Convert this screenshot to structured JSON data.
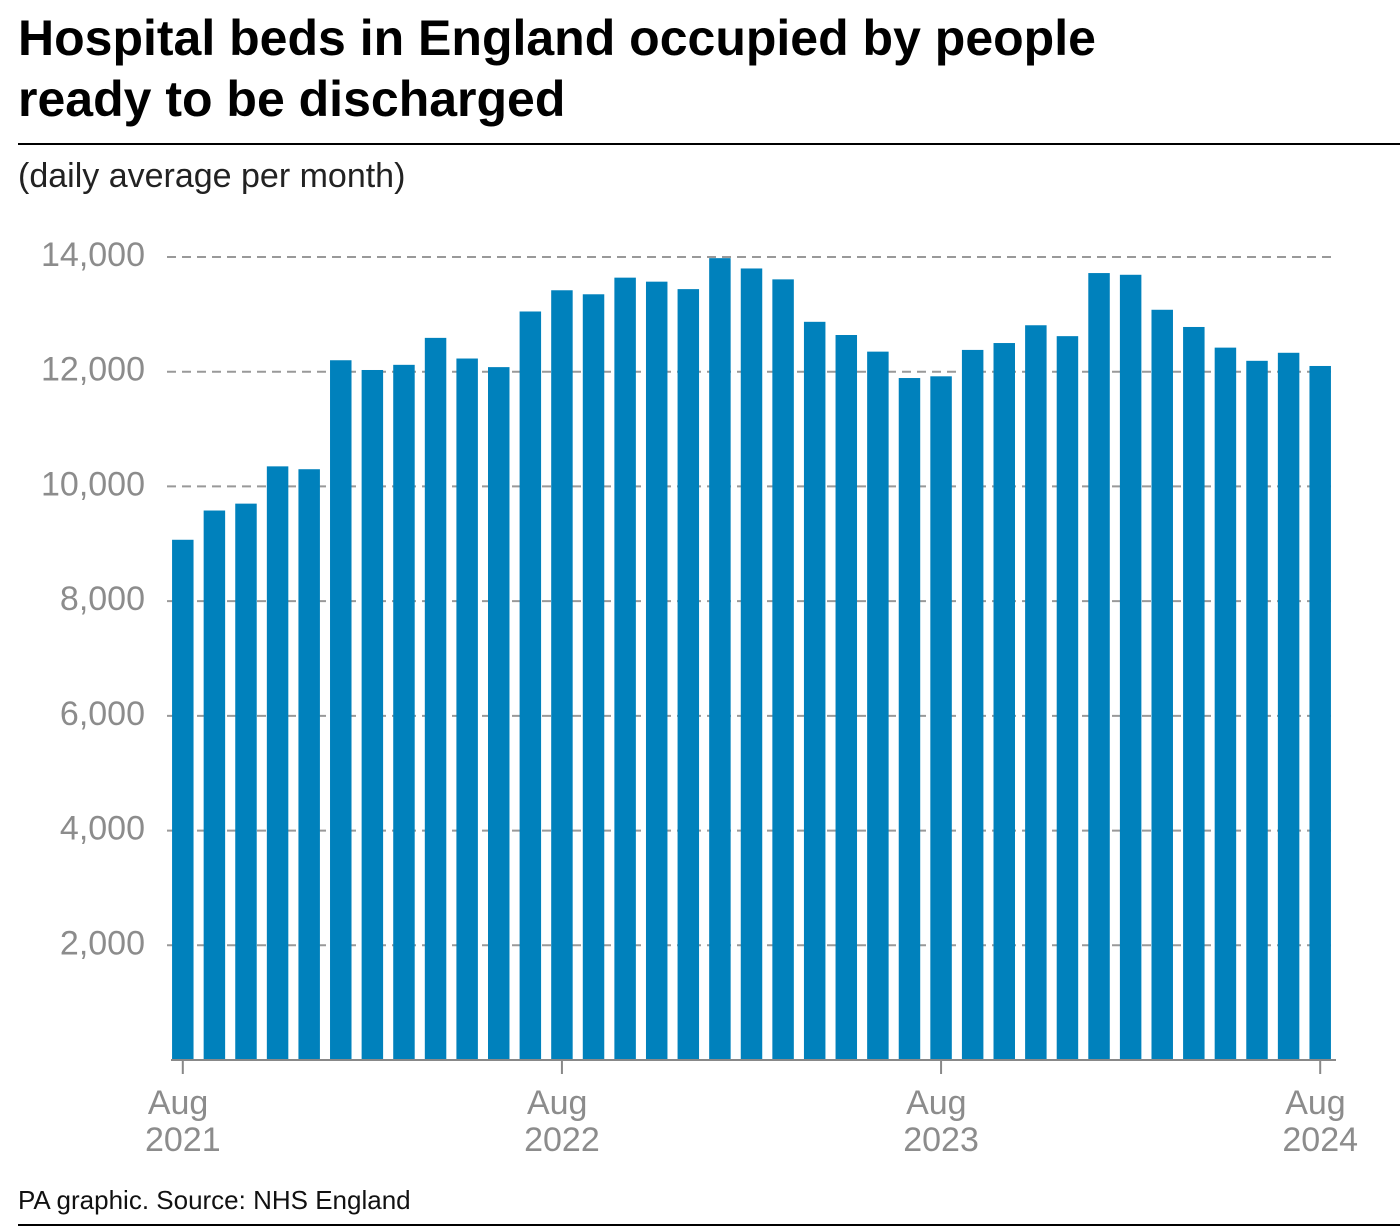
{
  "chart_data": {
    "type": "bar",
    "title": [
      "Hospital beds in England occupied by people",
      "ready to be discharged"
    ],
    "subtitle": "(daily average per month)",
    "source": "PA graphic. Source: NHS England",
    "categories": [
      "Aug 2021",
      null,
      null,
      null,
      null,
      null,
      null,
      null,
      null,
      null,
      null,
      null,
      "Aug 2022",
      null,
      null,
      null,
      null,
      null,
      null,
      null,
      null,
      null,
      null,
      null,
      "Aug 2023",
      null,
      null,
      null,
      null,
      null,
      null,
      null,
      null,
      null,
      null,
      null,
      "Aug 2024"
    ],
    "values": [
      9070,
      9580,
      9700,
      10350,
      10300,
      12200,
      12030,
      12120,
      12590,
      12230,
      12080,
      13050,
      13420,
      13350,
      13640,
      13570,
      13440,
      13980,
      13800,
      13610,
      12870,
      12640,
      12350,
      11890,
      11920,
      12380,
      12500,
      12810,
      12620,
      13720,
      13690,
      13080,
      12780,
      12420,
      12190,
      12330,
      12100
    ],
    "color": "#0081bc",
    "ylim": [
      0,
      14000
    ],
    "yticks": [
      {
        "value": 2000,
        "label": "2,000"
      },
      {
        "value": 4000,
        "label": "4,000"
      },
      {
        "value": 6000,
        "label": "6,000"
      },
      {
        "value": 8000,
        "label": "8,000"
      },
      {
        "value": 10000,
        "label": "10,000"
      },
      {
        "value": 12000,
        "label": "12,000"
      },
      {
        "value": 14000,
        "label": "14,000"
      }
    ],
    "grid": true
  }
}
